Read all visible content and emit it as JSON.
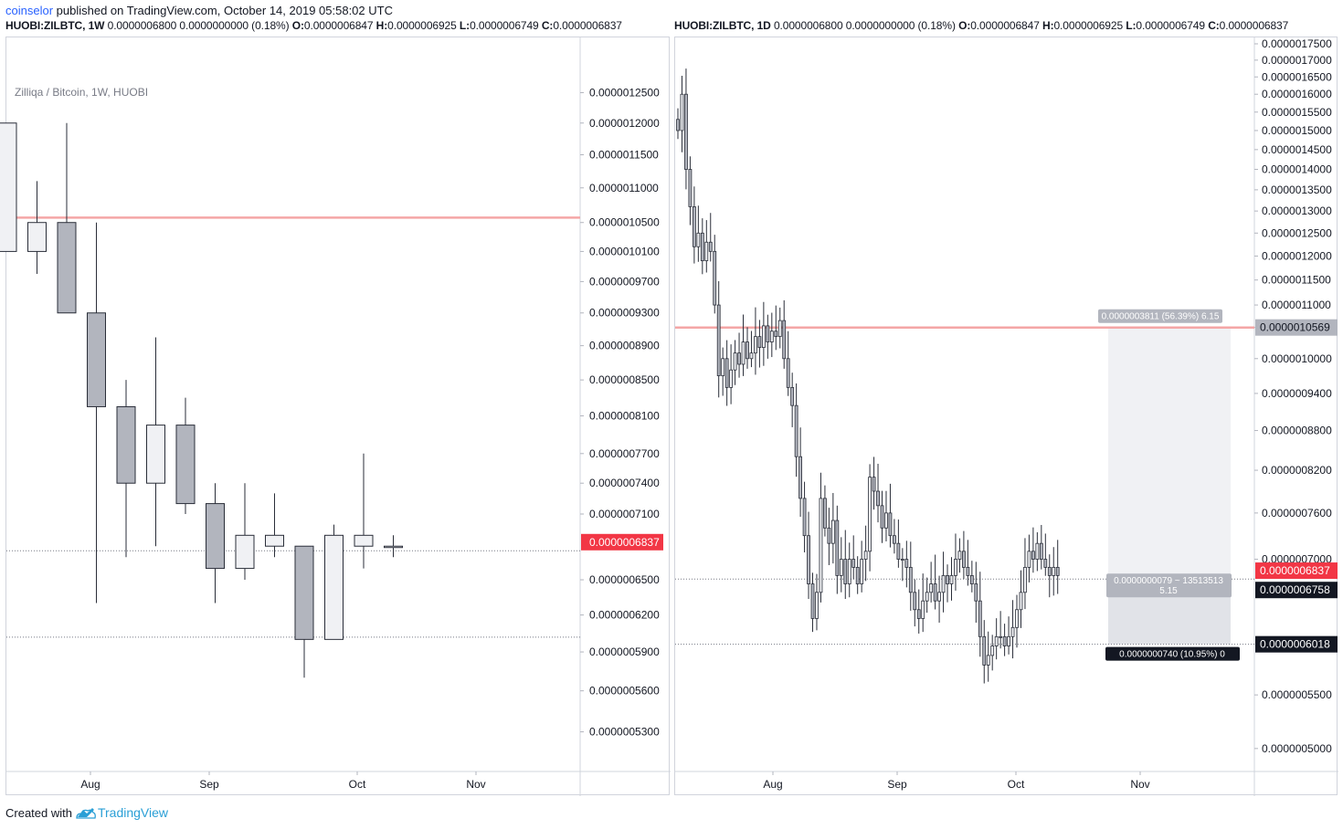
{
  "header": {
    "author": "coinselor",
    "published_text": " published on TradingView.com, October 14, 2019 05:58:02 UTC"
  },
  "left_header": {
    "symbol": "HUOBI:ZILBTC, 1W",
    "values": "0.0000006800 0.0000000000 (0.18%)",
    "o_label": "O:",
    "o": "0.0000006847",
    "h_label": "H:",
    "h": "0.0000006925",
    "l_label": "L:",
    "l": "0.0000006749",
    "c_label": "C:",
    "c": "0.0000006837"
  },
  "right_header": {
    "symbol": "HUOBI:ZILBTC, 1D",
    "values": "0.0000006800 0.0000000000 (0.18%)",
    "o_label": "O:",
    "o": "0.0000006847",
    "h_label": "H:",
    "h": "0.0000006925",
    "l_label": "L:",
    "l": "0.0000006749",
    "c_label": "C:",
    "c": "0.0000006837"
  },
  "footer": {
    "created_with": "Created with",
    "brand": "TradingView"
  },
  "colors": {
    "candle_down": "#b2b5be",
    "candle_up": "#f0f1f4",
    "candle_border": "#2a2e39",
    "resistance": "#f4a6a6",
    "price_tag": "#f23645",
    "dark_tag": "#131722",
    "grey_tag": "#b2b5be",
    "measure_fill": "#f0f1f4"
  },
  "chart_data": [
    {
      "type": "candlestick",
      "title": "Zilliqa / Bitcoin, 1W, HUOBI",
      "timeframe": "1W",
      "y_scale": "log",
      "ylim": [
        5.05e-07,
        1.333e-06
      ],
      "x_ticks": [
        "Aug",
        "Sep",
        "Oct",
        "Nov"
      ],
      "y_ticks": [
        "0.0000012500",
        "0.0000012000",
        "0.0000011500",
        "0.0000011000",
        "0.0000010500",
        "0.0000010100",
        "0.0000009700",
        "0.0000009300",
        "0.0000008900",
        "0.0000008500",
        "0.0000008100",
        "0.0000007700",
        "0.0000007400",
        "0.0000007100",
        "0.0000006500",
        "0.0000006200",
        "0.0000005900",
        "0.0000005600",
        "0.0000005300"
      ],
      "last_price_label": "0.0000006837",
      "resistance_level": 1.0569e-06,
      "dotted_levels": [
        6.758e-07,
        6.018e-07
      ],
      "candles": [
        {
          "o": 1.01e-06,
          "h": 1.2e-06,
          "l": 1.01e-06,
          "c": 1.2e-06
        },
        {
          "o": 1.01e-06,
          "h": 1.11e-06,
          "l": 9.8e-07,
          "c": 1.05e-06
        },
        {
          "o": 1.05e-06,
          "h": 1.2e-06,
          "l": 9.3e-07,
          "c": 9.3e-07
        },
        {
          "o": 9.3e-07,
          "h": 1.05e-06,
          "l": 6.3e-07,
          "c": 8.2e-07
        },
        {
          "o": 8.2e-07,
          "h": 8.5e-07,
          "l": 6.7e-07,
          "c": 7.4e-07
        },
        {
          "o": 7.4e-07,
          "h": 9e-07,
          "l": 6.8e-07,
          "c": 8e-07
        },
        {
          "o": 8e-07,
          "h": 8.3e-07,
          "l": 7.1e-07,
          "c": 7.2e-07
        },
        {
          "o": 7.2e-07,
          "h": 7.4e-07,
          "l": 6.3e-07,
          "c": 6.6e-07
        },
        {
          "o": 6.6e-07,
          "h": 7.4e-07,
          "l": 6.5e-07,
          "c": 6.9e-07
        },
        {
          "o": 6.8e-07,
          "h": 7.3e-07,
          "l": 6.7e-07,
          "c": 6.9e-07
        },
        {
          "o": 6.8e-07,
          "h": 6.8e-07,
          "l": 5.7e-07,
          "c": 6e-07
        },
        {
          "o": 6e-07,
          "h": 7e-07,
          "l": 6e-07,
          "c": 6.9e-07
        },
        {
          "o": 6.8e-07,
          "h": 7.7e-07,
          "l": 6.6e-07,
          "c": 6.9e-07
        },
        {
          "o": 6.8e-07,
          "h": 6.9e-07,
          "l": 6.7e-07,
          "c": 6.8e-07
        }
      ]
    },
    {
      "type": "candlestick",
      "title": "HUOBI:ZILBTC, 1D",
      "timeframe": "1D",
      "y_scale": "log",
      "ylim": [
        4.8e-07,
        1.77e-06
      ],
      "x_ticks": [
        "Aug",
        "Sep",
        "Oct",
        "Nov"
      ],
      "y_ticks": [
        "0.0000017500",
        "0.0000017000",
        "0.0000016500",
        "0.0000016000",
        "0.0000015500",
        "0.0000015000",
        "0.0000014500",
        "0.0000014000",
        "0.0000013500",
        "0.0000013000",
        "0.0000012500",
        "0.0000012000",
        "0.0000011500",
        "0.0000011000",
        "0.0000010569",
        "0.0000010000",
        "0.0000009400",
        "0.0000008800",
        "0.0000008200",
        "0.0000007600",
        "0.0000007000",
        "0.0000005500",
        "0.0000005000"
      ],
      "last_price_label": "0.0000006837",
      "resistance_level": 1.0569e-06,
      "resistance_label": "0.0000010569",
      "dotted_levels": [
        6.758e-07,
        6.018e-07
      ],
      "dotted_labels": [
        "0.0000006758",
        "0.0000006018"
      ],
      "measure_upper_label": "0.0000003811 (56.39%) 6.15",
      "measure_middle_label_1": "0.0000000079 ~ 13513513",
      "measure_middle_label_2": "5.15",
      "measure_lower_label": "0.0000000740 (10.95%) 0",
      "closes": [
        1.5e-06,
        1.6e-06,
        1.4e-06,
        1.31e-06,
        1.22e-06,
        1.25e-06,
        1.19e-06,
        1.23e-06,
        1.21e-06,
        1.1e-06,
        9.7e-07,
        1e-06,
        9.5e-07,
        9.8e-07,
        1.01e-06,
        9.9e-07,
        1.03e-06,
        1e-06,
        1.01e-06,
        1.04e-06,
        1.02e-06,
        1.06e-06,
        1.03e-06,
        1.05e-06,
        1.04e-06,
        1.07e-06,
        1e-06,
        9.5e-07,
        9.2e-07,
        8.4e-07,
        7.8e-07,
        7.3e-07,
        6.7e-07,
        6.3e-07,
        6.6e-07,
        7.8e-07,
        7.4e-07,
        7.2e-07,
        7.5e-07,
        6.8e-07,
        7e-07,
        6.7e-07,
        7e-07,
        6.9e-07,
        6.7e-07,
        7e-07,
        7.1e-07,
        8.1e-07,
        7.9e-07,
        7.7e-07,
        7.4e-07,
        7.6e-07,
        7.3e-07,
        7.2e-07,
        7e-07,
        7e-07,
        6.9e-07,
        6.6e-07,
        6.4e-07,
        6.3e-07,
        6.5e-07,
        6.6e-07,
        6.7e-07,
        6.5e-07,
        6.6e-07,
        6.8e-07,
        6.7e-07,
        6.8e-07,
        7e-07,
        7.1e-07,
        6.9e-07,
        6.8e-07,
        6.7e-07,
        6.5e-07,
        6.1e-07,
        5.8e-07,
        5.9e-07,
        6e-07,
        6.1e-07,
        6.1e-07,
        6e-07,
        6.1e-07,
        6.2e-07,
        6.4e-07,
        6.6e-07,
        6.9e-07,
        7.1e-07,
        7e-07,
        7.2e-07,
        7e-07,
        6.9e-07,
        6.8e-07,
        6.9e-07,
        6.8e-07
      ]
    }
  ]
}
